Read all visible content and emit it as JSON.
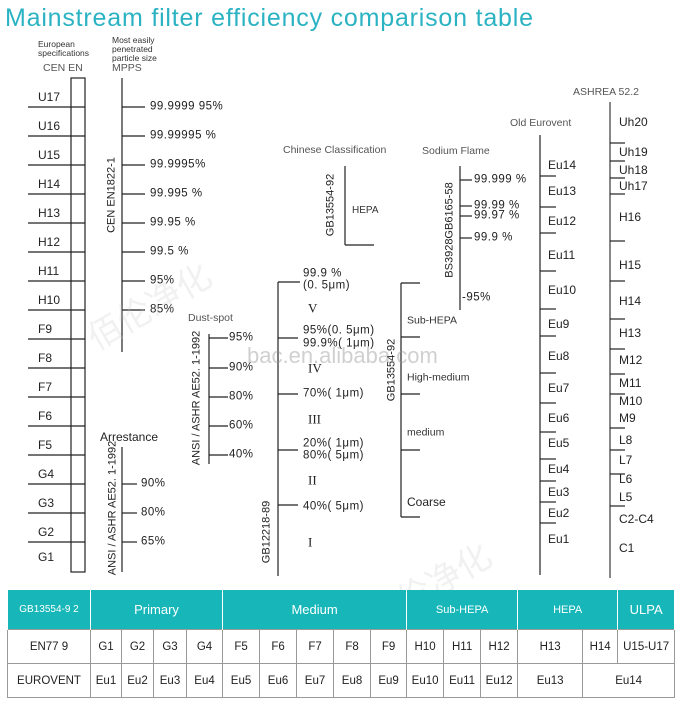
{
  "title": "Mainstream filter efficiency comparison table",
  "watermark": "bac.en.alibaba.com",
  "watermark_cn": "佰伦净化",
  "colors": {
    "accent": "#16b6b9",
    "title": "#2bb3c3"
  },
  "cen_en": {
    "heading": "European specifications",
    "subheading": "CEN EN",
    "classes": [
      "U17",
      "U16",
      "U15",
      "H14",
      "H13",
      "H12",
      "H11",
      "H10",
      "F9",
      "F8",
      "F7",
      "F6",
      "F5",
      "G4",
      "G3",
      "G2",
      "G1"
    ]
  },
  "mpps": {
    "heading": "Most easily penetrated particle size",
    "subheading": "MPPS",
    "standard": "CEN EN1822-1",
    "values": [
      "99.9999 95%",
      "99.99995 %",
      "99.9995%",
      "99.995 %",
      "99.95 %",
      "99.5 %",
      "95%",
      "85%"
    ]
  },
  "arrestance": {
    "heading": "Arrestance",
    "standard": "ANSI / ASHR AE52. 1-1992",
    "values": [
      "90%",
      "80%",
      "65%"
    ]
  },
  "dust_spot": {
    "heading": "Dust-spot",
    "standard": "ANSI / ASHR AE52. 1-1992",
    "values": [
      "95%",
      "90%",
      "80%",
      "60%",
      "40%"
    ]
  },
  "gb12218": {
    "standard": "GB12218-89",
    "labels": [
      "99.9 %",
      "(0. 5μm)",
      "V",
      "95%(0. 5μm)",
      "99.9%( 1μm)",
      "IV",
      "70%( 1μm)",
      "III",
      "20%( 1μm)",
      "80%( 5μm)",
      "II",
      "40%( 5μm)",
      "I"
    ]
  },
  "chinese": {
    "heading": "Chinese Classification",
    "standard": "GB13554-92",
    "hepa": "HEPA"
  },
  "gb13554": {
    "standard": "GB13554-92",
    "labels": [
      "Sub-HEPA",
      "High-medium",
      "medium",
      "Coarse"
    ]
  },
  "sodium": {
    "heading": "Sodium Flame",
    "standard": "BS3928GB6165-58",
    "values": [
      "99.999 %",
      "99.99 %",
      "99.97 %",
      "99.9 %",
      "-95%"
    ]
  },
  "old_eurovent": {
    "heading": "Old Eurovent",
    "classes": [
      "Eu14",
      "Eu13",
      "Eu12",
      "Eu11",
      "Eu10",
      "Eu9",
      "Eu8",
      "Eu7",
      "Eu6",
      "Eu5",
      "Eu4",
      "Eu3",
      "Eu2",
      "Eu1"
    ]
  },
  "ashrae": {
    "heading": "ASHREA 52.2",
    "classes": [
      "Uh20",
      "Uh19",
      "Uh18",
      "Uh17",
      "H16",
      "H15",
      "H14",
      "H13",
      "M12",
      "M11",
      "M10",
      "M9",
      "L8",
      "L7",
      "L6",
      "L5",
      "C2-C4",
      "C1"
    ]
  },
  "table": {
    "header": {
      "gb": "GB13554-9 2",
      "primary": "Primary",
      "medium": "Medium",
      "sub_hepa": "Sub-HEPA",
      "hepa": "HEPA",
      "ulpa": "ULPA"
    },
    "en779": {
      "label": "EN77  9",
      "cells": [
        "G1",
        "G2",
        "G3",
        "G4",
        "F5",
        "F6",
        "F7",
        "F8",
        "F9",
        "H10",
        "H11",
        "H12",
        "H13",
        "H14",
        "U15-U17"
      ]
    },
    "eurovent": {
      "label": "EUROVENT",
      "cells": [
        "Eu1",
        "Eu2",
        "Eu3",
        "Eu4",
        "Eu5",
        "Eu6",
        "Eu7",
        "Eu8",
        "Eu9",
        "Eu10",
        "Eu11",
        "Eu12",
        "Eu13",
        "Eu14"
      ]
    }
  }
}
